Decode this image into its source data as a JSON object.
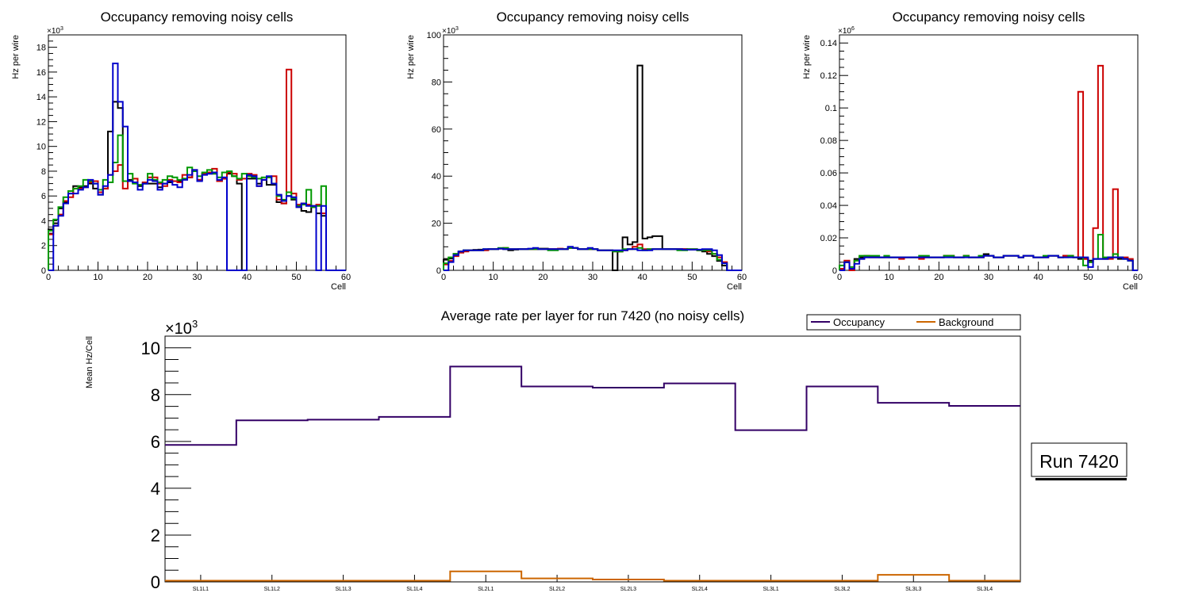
{
  "chart_data": [
    {
      "type": "line",
      "subtype": "step-histogram",
      "title": "Occupancy removing noisy cells",
      "xlabel": "Cell",
      "ylabel": "Hz per wire",
      "y_exponent_label": "×10",
      "y_exponent": "3",
      "xlim": [
        0,
        60
      ],
      "ylim": [
        0,
        19
      ],
      "x_ticks": [
        "0",
        "10",
        "20",
        "30",
        "40",
        "50",
        "60"
      ],
      "y_ticks": [
        "0",
        "2",
        "4",
        "6",
        "8",
        "10",
        "12",
        "14",
        "16",
        "18"
      ],
      "bins_start": 0,
      "series": [
        {
          "name": "black",
          "color": "#000000",
          "values": [
            3.3,
            3.8,
            5.0,
            5.5,
            6.2,
            6.8,
            6.7,
            6.8,
            7.0,
            6.6,
            6.1,
            6.6,
            11.2,
            13.6,
            13.1,
            7.2,
            7.3,
            7.1,
            6.8,
            7.0,
            7.0,
            7.0,
            6.7,
            7.0,
            7.1,
            7.2,
            7.2,
            7.4,
            7.5,
            8.0,
            7.3,
            7.8,
            7.8,
            7.8,
            7.2,
            7.4,
            7.8,
            7.6,
            7.0,
            0,
            7.4,
            7.4,
            7.0,
            7.3,
            6.9,
            6.9,
            5.5,
            5.4,
            6.0,
            5.7,
            5.1,
            4.8,
            4.7,
            5.1,
            4.6,
            4.4,
            0,
            0,
            0,
            0
          ]
        },
        {
          "name": "red",
          "color": "#cc0000",
          "values": [
            2.9,
            3.6,
            4.5,
            5.6,
            5.9,
            6.6,
            6.6,
            6.7,
            7.1,
            7.2,
            6.3,
            6.6,
            7.7,
            8.0,
            8.5,
            6.6,
            7.2,
            7.4,
            6.9,
            7.1,
            7.5,
            7.5,
            7.0,
            6.8,
            7.3,
            7.2,
            7.1,
            7.7,
            7.5,
            8.1,
            7.3,
            7.8,
            7.9,
            8.2,
            7.2,
            7.4,
            7.9,
            7.8,
            7.3,
            7.4,
            7.8,
            7.7,
            6.8,
            7.3,
            7.5,
            7.6,
            5.7,
            5.4,
            16.2,
            6.2,
            5.3,
            5.4,
            5.3,
            5.2,
            5.3,
            4.6,
            0,
            0,
            0,
            0
          ]
        },
        {
          "name": "green",
          "color": "#009900",
          "values": [
            3.2,
            4.1,
            5.1,
            5.9,
            6.4,
            6.6,
            6.8,
            7.3,
            7.2,
            7.0,
            6.5,
            7.3,
            7.1,
            8.7,
            10.9,
            7.2,
            7.8,
            7.0,
            6.9,
            7.0,
            7.8,
            7.3,
            7.1,
            7.3,
            7.6,
            7.5,
            7.3,
            7.4,
            8.3,
            8.0,
            7.6,
            7.9,
            8.1,
            7.8,
            7.5,
            7.9,
            8.0,
            7.6,
            7.4,
            7.8,
            7.6,
            7.5,
            7.4,
            7.5,
            7.5,
            7.0,
            6.0,
            5.7,
            6.3,
            5.8,
            5.2,
            5.3,
            6.5,
            5.1,
            5.2,
            6.8,
            0,
            0,
            0,
            0
          ]
        },
        {
          "name": "blue",
          "color": "#0000cc",
          "values": [
            0,
            3.6,
            4.4,
            5.4,
            6.2,
            6.2,
            6.5,
            6.7,
            7.3,
            7.0,
            6.1,
            6.8,
            7.7,
            16.7,
            13.6,
            11.6,
            7.2,
            7.1,
            6.5,
            7.0,
            7.3,
            7.2,
            6.5,
            7.0,
            7.2,
            6.9,
            6.7,
            7.3,
            7.7,
            8.1,
            7.2,
            7.7,
            7.8,
            7.9,
            7.3,
            7.5,
            0,
            0,
            0,
            0,
            7.7,
            7.6,
            6.8,
            7.3,
            7.6,
            7.0,
            6.1,
            5.6,
            6.0,
            5.9,
            5.1,
            5.4,
            5.2,
            5.2,
            0,
            5.2,
            0,
            0,
            0,
            0
          ]
        }
      ]
    },
    {
      "type": "line",
      "subtype": "step-histogram",
      "title": "Occupancy removing noisy cells",
      "xlabel": "Cell",
      "ylabel": "Hz per wire",
      "y_exponent_label": "×10",
      "y_exponent": "3",
      "xlim": [
        0,
        60
      ],
      "ylim": [
        0,
        100
      ],
      "x_ticks": [
        "0",
        "10",
        "20",
        "30",
        "40",
        "50",
        "60"
      ],
      "y_ticks": [
        "0",
        "20",
        "40",
        "60",
        "80",
        "100"
      ],
      "bins_start": 0,
      "series": [
        {
          "name": "black",
          "color": "#000000",
          "values": [
            4.5,
            5,
            7,
            8,
            8.5,
            8.5,
            8.7,
            8.8,
            8.8,
            9,
            9,
            9.2,
            9,
            8.5,
            8.8,
            9,
            9,
            9,
            9,
            9.2,
            9.2,
            9,
            9,
            9,
            9,
            9.5,
            9.5,
            9,
            9,
            9,
            9,
            8.5,
            8.5,
            8.5,
            0,
            8,
            14,
            11,
            12,
            87,
            13.5,
            14,
            14.5,
            14.5,
            9,
            9,
            9,
            9,
            9,
            8.8,
            8.8,
            8.5,
            8,
            7,
            6,
            4,
            2,
            0,
            0,
            0
          ]
        },
        {
          "name": "red",
          "color": "#cc0000",
          "values": [
            2.5,
            4,
            6,
            7.5,
            8,
            8.5,
            8.5,
            8.5,
            8.5,
            9,
            9,
            9.2,
            9.5,
            9,
            9,
            9,
            9,
            9,
            9,
            9,
            9,
            9,
            9,
            9.2,
            9,
            9.5,
            9.5,
            9,
            9,
            9,
            9,
            8.5,
            8.5,
            8.5,
            8,
            8,
            8.5,
            9,
            10,
            11,
            9,
            9,
            9,
            9,
            9,
            9,
            9,
            9,
            9,
            9,
            9,
            8.5,
            8.5,
            8,
            7,
            5.5,
            3.5,
            0,
            0,
            0
          ]
        },
        {
          "name": "green",
          "color": "#009900",
          "values": [
            3,
            5.5,
            7,
            8,
            8.5,
            8.5,
            8.5,
            8.5,
            9,
            9,
            9,
            9.5,
            9.5,
            9,
            9,
            9,
            9,
            9,
            9,
            9,
            9,
            8.5,
            8.5,
            9,
            9,
            9.5,
            9.5,
            9,
            9,
            9,
            9,
            8.5,
            8.5,
            8.5,
            8,
            8,
            9,
            9,
            9,
            9.5,
            8.5,
            9,
            9,
            9,
            9,
            9,
            9,
            8.5,
            8.5,
            9,
            9,
            8.5,
            8.5,
            8.5,
            7,
            4.5,
            3,
            0,
            0,
            0
          ]
        },
        {
          "name": "blue",
          "color": "#0000cc",
          "values": [
            0,
            3.5,
            6.5,
            8,
            8.5,
            8.5,
            8.5,
            8.5,
            9,
            9,
            9,
            9.2,
            9,
            9,
            9,
            9,
            9,
            9.2,
            9.5,
            9,
            9,
            9,
            9,
            9,
            9,
            10,
            9.5,
            9,
            9,
            9.5,
            9,
            8.5,
            8.5,
            8.5,
            8.5,
            8.5,
            8.5,
            9,
            9,
            8.5,
            8.5,
            8.5,
            9,
            9,
            9,
            9,
            9,
            9,
            8.8,
            8.8,
            8.8,
            8.8,
            9,
            9,
            8.5,
            6.5,
            3,
            0,
            0,
            0
          ]
        }
      ]
    },
    {
      "type": "line",
      "subtype": "step-histogram",
      "title": "Occupancy removing noisy cells",
      "xlabel": "Cell",
      "ylabel": "Hz per wire",
      "y_exponent_label": "×10",
      "y_exponent": "6",
      "xlim": [
        0,
        60
      ],
      "ylim": [
        0,
        0.145
      ],
      "x_ticks": [
        "0",
        "10",
        "20",
        "30",
        "40",
        "50",
        "60"
      ],
      "y_ticks": [
        "0",
        "0.02",
        "0.04",
        "0.06",
        "0.08",
        "0.1",
        "0.12",
        "0.14"
      ],
      "bins_start": 0,
      "series": [
        {
          "name": "black",
          "color": "#000000",
          "values": [
            0.001,
            0.005,
            0.001,
            0.007,
            0.008,
            0.008,
            0.008,
            0.008,
            0.008,
            0.008,
            0.008,
            0.008,
            0.008,
            0.008,
            0.008,
            0.008,
            0.008,
            0.008,
            0.008,
            0.008,
            0.008,
            0.009,
            0.009,
            0.008,
            0.008,
            0.009,
            0.008,
            0.008,
            0.008,
            0.01,
            0.009,
            0.008,
            0.008,
            0.009,
            0.009,
            0.009,
            0.008,
            0.009,
            0.009,
            0.008,
            0.008,
            0.008,
            0.009,
            0.009,
            0.008,
            0.009,
            0.009,
            0.008,
            0.007,
            0.007,
            0.006,
            0.007,
            0.007,
            0.007,
            0.008,
            0.008,
            0.007,
            0.007,
            0.006,
            0
          ]
        },
        {
          "name": "red",
          "color": "#cc0000",
          "values": [
            0.001,
            0.006,
            0,
            0.006,
            0.007,
            0.009,
            0.008,
            0.008,
            0.008,
            0.008,
            0.008,
            0.008,
            0.007,
            0.008,
            0.008,
            0.008,
            0.007,
            0.008,
            0.008,
            0.008,
            0.008,
            0.009,
            0.009,
            0.008,
            0.008,
            0.009,
            0.008,
            0.008,
            0.008,
            0.009,
            0.009,
            0.008,
            0.008,
            0.009,
            0.009,
            0.009,
            0.008,
            0.009,
            0.009,
            0.008,
            0.008,
            0.008,
            0.009,
            0.009,
            0.008,
            0.009,
            0.009,
            0.008,
            0.11,
            0.007,
            0.005,
            0.026,
            0.126,
            0.007,
            0.007,
            0.05,
            0.008,
            0.008,
            0.007,
            0
          ]
        },
        {
          "name": "green",
          "color": "#009900",
          "values": [
            0.003,
            0.005,
            0.002,
            0.006,
            0.009,
            0.009,
            0.009,
            0.009,
            0.008,
            0.009,
            0.008,
            0.008,
            0.008,
            0.008,
            0.008,
            0.008,
            0.009,
            0.009,
            0.008,
            0.008,
            0.008,
            0.009,
            0.009,
            0.008,
            0.008,
            0.009,
            0.008,
            0.008,
            0.009,
            0.009,
            0.009,
            0.008,
            0.008,
            0.009,
            0.009,
            0.009,
            0.008,
            0.009,
            0.009,
            0.008,
            0.008,
            0.009,
            0.009,
            0.009,
            0.008,
            0.008,
            0.009,
            0.008,
            0.008,
            0.003,
            0.005,
            0.007,
            0.022,
            0.008,
            0.008,
            0.01,
            0.008,
            0.007,
            0.006,
            0
          ]
        },
        {
          "name": "blue",
          "color": "#0000cc",
          "values": [
            0,
            0.005,
            0.001,
            0.004,
            0.007,
            0.008,
            0.008,
            0.008,
            0.008,
            0.008,
            0.008,
            0.008,
            0.008,
            0.008,
            0.008,
            0.008,
            0.008,
            0.008,
            0.008,
            0.008,
            0.008,
            0.008,
            0.008,
            0.008,
            0.008,
            0.008,
            0.008,
            0.008,
            0.008,
            0.009,
            0.009,
            0.008,
            0.008,
            0.009,
            0.009,
            0.009,
            0.008,
            0.009,
            0.009,
            0.008,
            0.008,
            0.008,
            0.009,
            0.009,
            0.008,
            0.008,
            0.008,
            0.008,
            0.008,
            0.008,
            0.002,
            0.007,
            0.007,
            0.007,
            0.008,
            0.008,
            0.008,
            0.007,
            0.006,
            0
          ]
        }
      ]
    },
    {
      "type": "line",
      "subtype": "step-histogram",
      "title": "Average rate per layer for run 7420 (no noisy cells)",
      "xlabel": "",
      "ylabel": "Mean Hz/Cell",
      "y_exponent_label": "×10",
      "y_exponent": "3",
      "ylim": [
        0,
        10.5
      ],
      "y_ticks": [
        "0",
        "2",
        "4",
        "6",
        "8",
        "10"
      ],
      "categories": [
        "SL1L1",
        "SL1L2",
        "SL1L3",
        "SL1L4",
        "SL2L1",
        "SL2L2",
        "SL2L3",
        "SL2L4",
        "SL3L1",
        "SL3L2",
        "SL3L3",
        "SL3L4"
      ],
      "legend_position": "top-right",
      "series": [
        {
          "name": "Occupancy",
          "color": "#330066",
          "values": [
            5.85,
            6.9,
            6.93,
            7.05,
            9.2,
            8.35,
            8.3,
            8.48,
            6.48,
            8.35,
            7.65,
            7.52
          ]
        },
        {
          "name": "Background",
          "color": "#cc6600",
          "values": [
            0.05,
            0.05,
            0.05,
            0.05,
            0.45,
            0.15,
            0.1,
            0.05,
            0.05,
            0.05,
            0.3,
            0.05
          ]
        }
      ],
      "annotation": "Run 7420"
    }
  ]
}
